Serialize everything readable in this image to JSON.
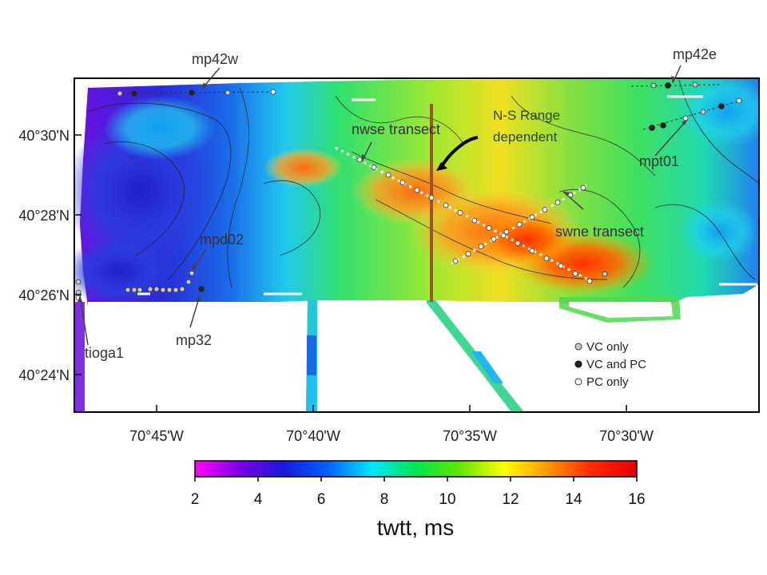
{
  "map": {
    "lat_ticks": [
      "40°30'N",
      "40°28'N",
      "40°26'N",
      "40°24'N"
    ],
    "lon_ticks": [
      "70°45'W",
      "70°40'W",
      "70°35'W",
      "70°30'W"
    ],
    "annotations": {
      "mp42w": "mp42w",
      "mp42e": "mp42e",
      "nwse": "nwse transect",
      "ns_line1": "N-S Range",
      "ns_line2": "dependent",
      "mpt01": "mpt01",
      "mpd02": "mpd02",
      "swne": "swne transect",
      "tioga1": "tioga1",
      "mp32": "mp32"
    },
    "legend": {
      "vc_only": "VC only",
      "vc_and_pc": "VC and PC",
      "pc_only": "PC only"
    },
    "colors": {
      "ns_transect": "#a0522d",
      "vc_only_marker": "#c8c8c8",
      "vc_and_pc_marker": "#222222",
      "pc_only_marker": "#ffffff"
    }
  },
  "colorbar": {
    "title": "twtt, ms",
    "min": 2,
    "max": 16,
    "ticks": [
      "2",
      "4",
      "6",
      "8",
      "10",
      "12",
      "14",
      "16"
    ],
    "colors": [
      "#ff00ff",
      "#7a00e6",
      "#1a1adc",
      "#0060ff",
      "#00e6ff",
      "#00e650",
      "#64e600",
      "#ffff00",
      "#ff9600",
      "#ff2800",
      "#e60000"
    ]
  }
}
